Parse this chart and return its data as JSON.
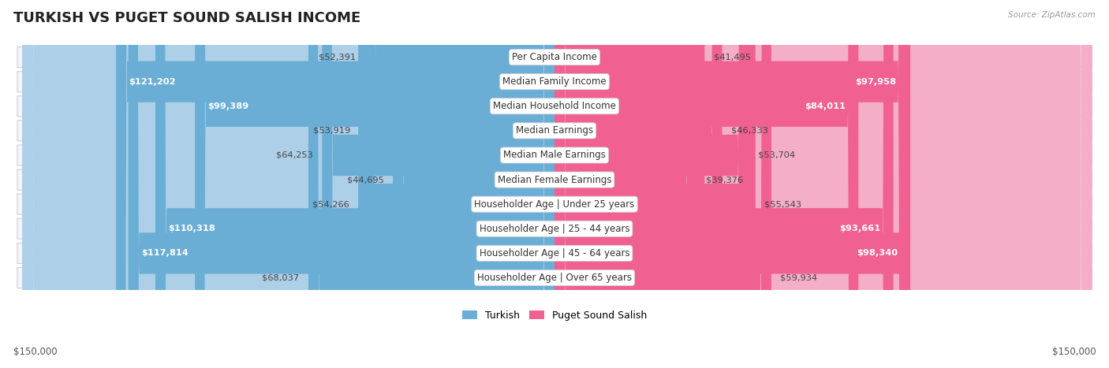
{
  "title": "TURKISH VS PUGET SOUND SALISH INCOME",
  "source": "Source: ZipAtlas.com",
  "categories": [
    "Per Capita Income",
    "Median Family Income",
    "Median Household Income",
    "Median Earnings",
    "Median Male Earnings",
    "Median Female Earnings",
    "Householder Age | Under 25 years",
    "Householder Age | 25 - 44 years",
    "Householder Age | 45 - 64 years",
    "Householder Age | Over 65 years"
  ],
  "turkish_values": [
    52391,
    121202,
    99389,
    53919,
    64253,
    44695,
    54266,
    110318,
    117814,
    68037
  ],
  "puget_values": [
    41495,
    97958,
    84011,
    46333,
    53704,
    39376,
    55543,
    93661,
    98340,
    59934
  ],
  "turkish_labels": [
    "$52,391",
    "$121,202",
    "$99,389",
    "$53,919",
    "$64,253",
    "$44,695",
    "$54,266",
    "$110,318",
    "$117,814",
    "$68,037"
  ],
  "puget_labels": [
    "$41,495",
    "$97,958",
    "$84,011",
    "$46,333",
    "$53,704",
    "$39,376",
    "$55,543",
    "$93,661",
    "$98,340",
    "$59,934"
  ],
  "turkish_color_light": "#aecfe8",
  "turkish_color_dark": "#6aaed6",
  "puget_color_light": "#f5aec8",
  "puget_color_dark": "#f06090",
  "row_bg_color": "#f5f5f8",
  "row_border_color": "#d0d0d8",
  "max_value": 150000,
  "xlabel_left": "$150,000",
  "xlabel_right": "$150,000",
  "legend_turkish": "Turkish",
  "legend_puget": "Puget Sound Salish",
  "title_fontsize": 13,
  "category_fontsize": 8.5,
  "value_fontsize": 8.2,
  "inside_label_color": "#ffffff",
  "outside_label_color": "#444444",
  "inside_threshold_ratio": 0.55
}
